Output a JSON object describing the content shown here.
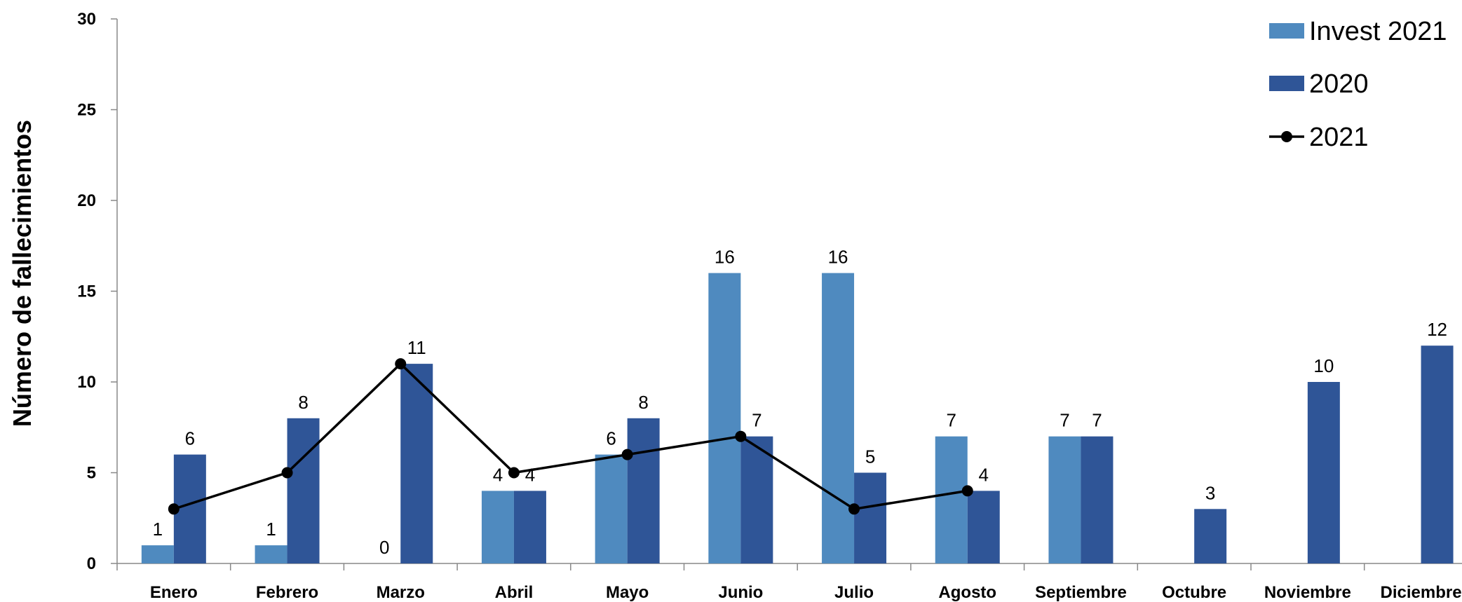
{
  "chart_data": {
    "type": "bar",
    "ylabel": "Número de fallecimientos",
    "xlabel": "",
    "ylim": [
      0,
      30
    ],
    "yticks": [
      0,
      5,
      10,
      15,
      20,
      25,
      30
    ],
    "categories": [
      "Enero",
      "Febrero",
      "Marzo",
      "Abril",
      "Mayo",
      "Junio",
      "Julio",
      "Agosto",
      "Septiembre",
      "Octubre",
      "Noviembre",
      "Diciembre"
    ],
    "series": [
      {
        "name": "Invest 2021",
        "type": "bar",
        "color": "#4f8abf",
        "values": [
          1,
          1,
          0,
          4,
          6,
          16,
          16,
          7,
          7,
          null,
          null,
          null
        ]
      },
      {
        "name": "2020",
        "type": "bar",
        "color": "#2f5597",
        "values": [
          6,
          8,
          11,
          4,
          8,
          7,
          5,
          4,
          7,
          3,
          10,
          12
        ]
      },
      {
        "name": "2021",
        "type": "line",
        "color": "#000000",
        "values": [
          3,
          5,
          11,
          5,
          6,
          7,
          3,
          4,
          null,
          null,
          null,
          null
        ]
      }
    ],
    "legend": {
      "position": "top-right"
    },
    "grid": false
  }
}
